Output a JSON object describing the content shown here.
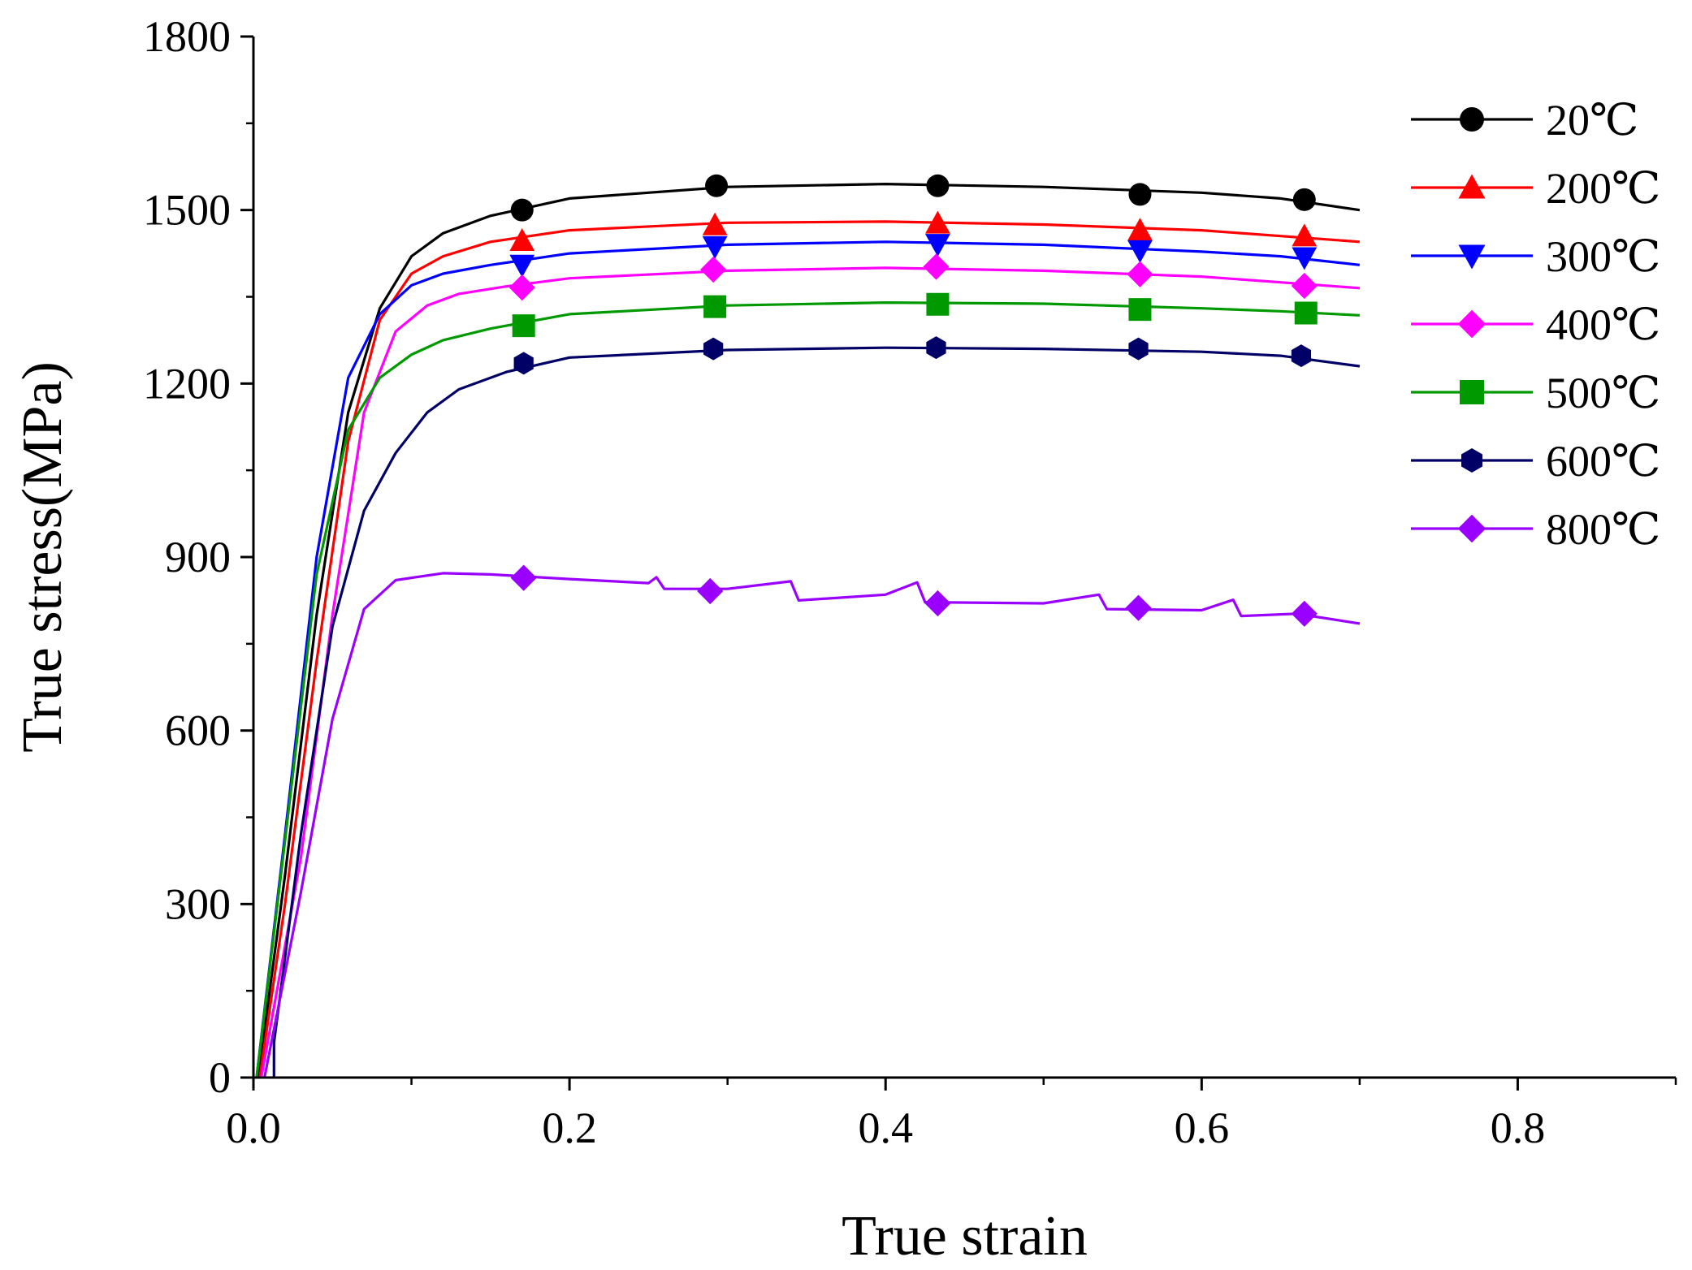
{
  "chart_data": {
    "type": "line",
    "title": "",
    "xlabel": "True strain",
    "ylabel": "True stress(MPa)",
    "xlim": [
      0,
      0.9
    ],
    "ylim": [
      0,
      1800
    ],
    "x_ticks": [
      "0.0",
      "0.2",
      "0.4",
      "0.6",
      "0.8"
    ],
    "y_ticks": [
      "0",
      "300",
      "600",
      "900",
      "1200",
      "1500",
      "1800"
    ],
    "legend_position": "top-right",
    "series": [
      {
        "name": "20℃",
        "color": "#000000",
        "marker": "circle",
        "points": [
          [
            0.003,
            0
          ],
          [
            0.02,
            350
          ],
          [
            0.04,
            800
          ],
          [
            0.06,
            1150
          ],
          [
            0.08,
            1330
          ],
          [
            0.1,
            1420
          ],
          [
            0.12,
            1460
          ],
          [
            0.15,
            1490
          ],
          [
            0.2,
            1520
          ],
          [
            0.3,
            1540
          ],
          [
            0.4,
            1545
          ],
          [
            0.5,
            1540
          ],
          [
            0.6,
            1530
          ],
          [
            0.65,
            1520
          ],
          [
            0.7,
            1500
          ]
        ],
        "markers": [
          [
            0.17,
            1500
          ],
          [
            0.293,
            1542
          ],
          [
            0.433,
            1542
          ],
          [
            0.561,
            1527
          ],
          [
            0.665,
            1518
          ]
        ]
      },
      {
        "name": "200℃",
        "color": "#ff0000",
        "marker": "triangle-up",
        "points": [
          [
            0.004,
            0
          ],
          [
            0.02,
            300
          ],
          [
            0.04,
            720
          ],
          [
            0.06,
            1100
          ],
          [
            0.08,
            1310
          ],
          [
            0.1,
            1390
          ],
          [
            0.12,
            1420
          ],
          [
            0.15,
            1445
          ],
          [
            0.2,
            1465
          ],
          [
            0.3,
            1478
          ],
          [
            0.4,
            1480
          ],
          [
            0.5,
            1475
          ],
          [
            0.6,
            1465
          ],
          [
            0.65,
            1455
          ],
          [
            0.7,
            1445
          ]
        ],
        "markers": [
          [
            0.17,
            1447
          ],
          [
            0.292,
            1474
          ],
          [
            0.433,
            1477
          ],
          [
            0.561,
            1465
          ],
          [
            0.665,
            1455
          ]
        ]
      },
      {
        "name": "300℃",
        "color": "#0000ff",
        "marker": "triangle-down",
        "points": [
          [
            0.002,
            0
          ],
          [
            0.02,
            420
          ],
          [
            0.04,
            900
          ],
          [
            0.06,
            1210
          ],
          [
            0.08,
            1320
          ],
          [
            0.1,
            1370
          ],
          [
            0.12,
            1390
          ],
          [
            0.15,
            1405
          ],
          [
            0.2,
            1425
          ],
          [
            0.3,
            1440
          ],
          [
            0.4,
            1445
          ],
          [
            0.5,
            1440
          ],
          [
            0.6,
            1428
          ],
          [
            0.65,
            1420
          ],
          [
            0.7,
            1405
          ]
        ],
        "markers": [
          [
            0.17,
            1405
          ],
          [
            0.292,
            1437
          ],
          [
            0.433,
            1441
          ],
          [
            0.561,
            1430
          ],
          [
            0.665,
            1418
          ]
        ]
      },
      {
        "name": "400℃",
        "color": "#ff00ff",
        "marker": "diamond",
        "points": [
          [
            0.005,
            0
          ],
          [
            0.03,
            380
          ],
          [
            0.05,
            800
          ],
          [
            0.07,
            1150
          ],
          [
            0.09,
            1290
          ],
          [
            0.11,
            1335
          ],
          [
            0.13,
            1355
          ],
          [
            0.16,
            1368
          ],
          [
            0.2,
            1382
          ],
          [
            0.3,
            1395
          ],
          [
            0.4,
            1400
          ],
          [
            0.5,
            1395
          ],
          [
            0.6,
            1385
          ],
          [
            0.65,
            1375
          ],
          [
            0.7,
            1365
          ]
        ],
        "markers": [
          [
            0.17,
            1366
          ],
          [
            0.291,
            1397
          ],
          [
            0.432,
            1402
          ],
          [
            0.561,
            1389
          ],
          [
            0.665,
            1369
          ]
        ]
      },
      {
        "name": "500℃",
        "color": "#009900",
        "marker": "square",
        "points": [
          [
            0.002,
            0
          ],
          [
            0.02,
            410
          ],
          [
            0.04,
            870
          ],
          [
            0.06,
            1120
          ],
          [
            0.08,
            1210
          ],
          [
            0.1,
            1250
          ],
          [
            0.12,
            1275
          ],
          [
            0.15,
            1295
          ],
          [
            0.2,
            1320
          ],
          [
            0.3,
            1335
          ],
          [
            0.4,
            1340
          ],
          [
            0.5,
            1338
          ],
          [
            0.6,
            1330
          ],
          [
            0.65,
            1325
          ],
          [
            0.7,
            1318
          ]
        ],
        "markers": [
          [
            0.171,
            1300
          ],
          [
            0.292,
            1333
          ],
          [
            0.433,
            1337
          ],
          [
            0.561,
            1328
          ],
          [
            0.666,
            1322
          ]
        ]
      },
      {
        "name": "600℃",
        "color": "#000066",
        "marker": "hexagon",
        "points": [
          [
            0.013,
            0
          ],
          [
            0.013,
            60
          ],
          [
            0.03,
            420
          ],
          [
            0.05,
            780
          ],
          [
            0.07,
            980
          ],
          [
            0.09,
            1080
          ],
          [
            0.11,
            1150
          ],
          [
            0.13,
            1190
          ],
          [
            0.16,
            1220
          ],
          [
            0.2,
            1245
          ],
          [
            0.3,
            1258
          ],
          [
            0.4,
            1262
          ],
          [
            0.5,
            1260
          ],
          [
            0.6,
            1255
          ],
          [
            0.65,
            1248
          ],
          [
            0.7,
            1230
          ]
        ],
        "markers": [
          [
            0.171,
            1235
          ],
          [
            0.291,
            1260
          ],
          [
            0.432,
            1262
          ],
          [
            0.56,
            1260
          ],
          [
            0.663,
            1248
          ]
        ]
      },
      {
        "name": "800℃",
        "color": "#9900ff",
        "marker": "diamond",
        "points": [
          [
            0.007,
            0
          ],
          [
            0.03,
            320
          ],
          [
            0.05,
            620
          ],
          [
            0.07,
            810
          ],
          [
            0.09,
            860
          ],
          [
            0.12,
            872
          ],
          [
            0.15,
            870
          ],
          [
            0.2,
            862
          ],
          [
            0.25,
            855
          ],
          [
            0.255,
            865
          ],
          [
            0.26,
            845
          ],
          [
            0.3,
            845
          ],
          [
            0.34,
            858
          ],
          [
            0.345,
            825
          ],
          [
            0.4,
            835
          ],
          [
            0.42,
            856
          ],
          [
            0.425,
            822
          ],
          [
            0.5,
            820
          ],
          [
            0.535,
            835
          ],
          [
            0.54,
            810
          ],
          [
            0.6,
            808
          ],
          [
            0.62,
            826
          ],
          [
            0.625,
            798
          ],
          [
            0.66,
            802
          ],
          [
            0.7,
            785
          ]
        ],
        "markers": [
          [
            0.171,
            864
          ],
          [
            0.289,
            841
          ],
          [
            0.433,
            820
          ],
          [
            0.56,
            812
          ],
          [
            0.665,
            802
          ]
        ]
      }
    ]
  }
}
